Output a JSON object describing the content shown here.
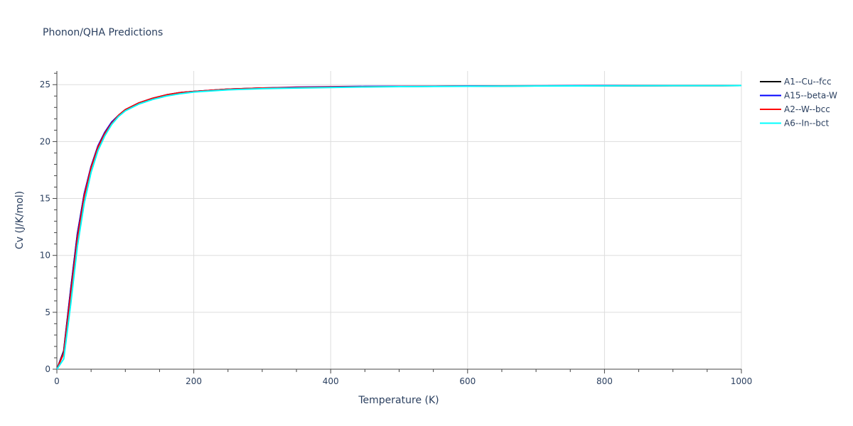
{
  "chart_data": {
    "type": "line",
    "title": "Phonon/QHA Predictions",
    "xlabel": "Temperature (K)",
    "ylabel": "Cv (J/K/mol)",
    "xlim": [
      0,
      1000
    ],
    "ylim": [
      0,
      26.2
    ],
    "x_ticks": [
      0,
      200,
      400,
      600,
      800,
      1000
    ],
    "y_ticks": [
      0,
      5,
      10,
      15,
      20,
      25
    ],
    "grid": true,
    "legend_position": "top-right",
    "x": [
      0,
      10,
      20,
      30,
      40,
      50,
      60,
      70,
      80,
      90,
      100,
      120,
      140,
      160,
      180,
      200,
      250,
      300,
      350,
      400,
      450,
      500,
      600,
      700,
      800,
      900,
      1000
    ],
    "series": [
      {
        "name": "A1--Cu--fcc",
        "color": "#000000",
        "values": [
          0,
          1.6,
          6.9,
          11.9,
          15.4,
          17.8,
          19.6,
          20.8,
          21.7,
          22.3,
          22.8,
          23.4,
          23.8,
          24.1,
          24.3,
          24.4,
          24.6,
          24.7,
          24.75,
          24.8,
          24.82,
          24.84,
          24.87,
          24.89,
          24.9,
          24.91,
          24.92
        ]
      },
      {
        "name": "A15--beta-W",
        "color": "#0000ff",
        "values": [
          0,
          1.5,
          6.8,
          11.8,
          15.4,
          17.8,
          19.6,
          20.8,
          21.7,
          22.3,
          22.8,
          23.4,
          23.8,
          24.1,
          24.3,
          24.4,
          24.6,
          24.7,
          24.78,
          24.82,
          24.85,
          24.86,
          24.88,
          24.9,
          24.91,
          24.92,
          24.92
        ]
      },
      {
        "name": "A2--W--bcc",
        "color": "#ff0000",
        "values": [
          0,
          1.4,
          6.5,
          11.5,
          15.2,
          17.7,
          19.5,
          20.7,
          21.6,
          22.3,
          22.8,
          23.4,
          23.8,
          24.1,
          24.3,
          24.4,
          24.6,
          24.7,
          24.75,
          24.8,
          24.82,
          24.84,
          24.87,
          24.89,
          24.9,
          24.91,
          24.92
        ]
      },
      {
        "name": "A6--In--bct",
        "color": "#00ffff",
        "values": [
          0,
          0.9,
          5.6,
          10.8,
          14.6,
          17.3,
          19.2,
          20.5,
          21.5,
          22.2,
          22.7,
          23.3,
          23.7,
          24.0,
          24.2,
          24.35,
          24.55,
          24.65,
          24.7,
          24.75,
          24.8,
          24.83,
          24.86,
          24.88,
          24.9,
          24.91,
          24.92
        ]
      }
    ]
  }
}
